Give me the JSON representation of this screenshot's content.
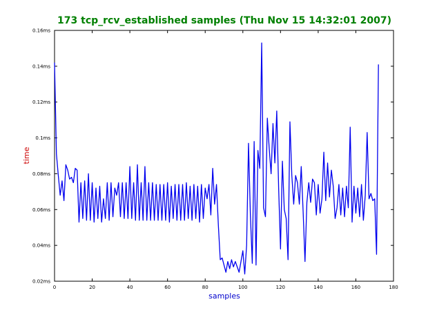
{
  "chart_data": {
    "type": "line",
    "title": "173 tcp_rcv_established samples (Thu Nov 15 14:32:01 2007)",
    "xlabel": "samples",
    "ylabel": "time",
    "xlim": [
      0,
      180
    ],
    "ylim": [
      0.02,
      0.16
    ],
    "x_ticks": [
      0,
      20,
      40,
      60,
      80,
      100,
      120,
      140,
      160,
      180
    ],
    "x_tick_labels": [
      "0",
      "20",
      "40",
      "60",
      "80",
      "100",
      "120",
      "140",
      "160",
      "180"
    ],
    "y_ticks": [
      0.02,
      0.04,
      0.06,
      0.08,
      0.1,
      0.12,
      0.14,
      0.16
    ],
    "y_tick_labels": [
      "0.02ms",
      "0.04ms",
      "0.06ms",
      "0.08ms",
      "0.1ms",
      "0.12ms",
      "0.14ms",
      "0.16ms"
    ],
    "grid": false,
    "colors": {
      "title": "#008000",
      "ylabel": "#cc0000",
      "xlabel": "#0000cc",
      "series": "#0000ee"
    },
    "series": [
      {
        "values": [
          0.142,
          0.091,
          0.079,
          0.068,
          0.076,
          0.065,
          0.085,
          0.082,
          0.077,
          0.078,
          0.075,
          0.083,
          0.082,
          0.053,
          0.075,
          0.055,
          0.076,
          0.054,
          0.08,
          0.054,
          0.075,
          0.053,
          0.072,
          0.055,
          0.073,
          0.053,
          0.066,
          0.055,
          0.075,
          0.054,
          0.075,
          0.056,
          0.072,
          0.068,
          0.075,
          0.056,
          0.075,
          0.055,
          0.075,
          0.055,
          0.084,
          0.055,
          0.075,
          0.054,
          0.085,
          0.054,
          0.075,
          0.054,
          0.084,
          0.054,
          0.075,
          0.054,
          0.075,
          0.054,
          0.074,
          0.054,
          0.074,
          0.054,
          0.074,
          0.054,
          0.075,
          0.053,
          0.073,
          0.055,
          0.074,
          0.054,
          0.074,
          0.054,
          0.074,
          0.054,
          0.075,
          0.055,
          0.073,
          0.054,
          0.074,
          0.055,
          0.073,
          0.053,
          0.074,
          0.055,
          0.072,
          0.066,
          0.074,
          0.057,
          0.083,
          0.063,
          0.074,
          0.051,
          0.032,
          0.033,
          0.029,
          0.025,
          0.031,
          0.027,
          0.032,
          0.028,
          0.031,
          0.028,
          0.025,
          0.031,
          0.037,
          0.024,
          0.04,
          0.097,
          0.057,
          0.03,
          0.098,
          0.029,
          0.093,
          0.083,
          0.153,
          0.061,
          0.056,
          0.111,
          0.094,
          0.08,
          0.108,
          0.086,
          0.115,
          0.072,
          0.038,
          0.087,
          0.06,
          0.055,
          0.032,
          0.109,
          0.079,
          0.063,
          0.079,
          0.075,
          0.063,
          0.084,
          0.059,
          0.031,
          0.064,
          0.075,
          0.064,
          0.077,
          0.075,
          0.057,
          0.074,
          0.058,
          0.066,
          0.092,
          0.065,
          0.086,
          0.067,
          0.082,
          0.073,
          0.055,
          0.061,
          0.074,
          0.057,
          0.072,
          0.056,
          0.073,
          0.061,
          0.106,
          0.053,
          0.073,
          0.058,
          0.072,
          0.056,
          0.074,
          0.054,
          0.068,
          0.103,
          0.066,
          0.069,
          0.065,
          0.066,
          0.035,
          0.141
        ]
      }
    ]
  }
}
